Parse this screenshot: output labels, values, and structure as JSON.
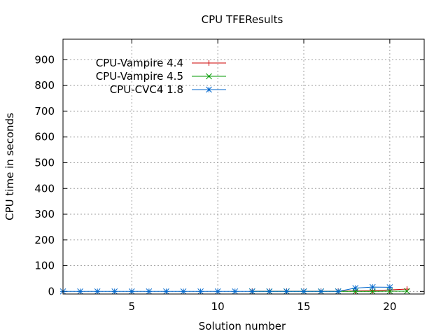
{
  "chart_data": {
    "type": "line",
    "title": "CPU TFEResults",
    "xlabel": "Solution number",
    "ylabel": "CPU time in seconds",
    "xlim": [
      1,
      22
    ],
    "ylim": [
      -10,
      980
    ],
    "xticks": [
      5,
      10,
      15,
      20
    ],
    "yticks": [
      0,
      100,
      200,
      300,
      400,
      500,
      600,
      700,
      800,
      900
    ],
    "grid": true,
    "legend": "top-left",
    "series": [
      {
        "name": "CPU-Vampire 4.4",
        "color": "#cc0000",
        "marker": "plus",
        "x": [
          12,
          13,
          14,
          15,
          16,
          17,
          18,
          19,
          20,
          21
        ],
        "y": [
          1,
          1,
          1,
          1,
          1,
          1,
          2,
          3,
          6,
          9
        ]
      },
      {
        "name": "CPU-Vampire 4.5",
        "color": "#009900",
        "marker": "cross",
        "x": [
          12,
          13,
          14,
          15,
          16,
          17,
          18,
          19,
          20,
          21
        ],
        "y": [
          0,
          0,
          0,
          0,
          0,
          0,
          0,
          0,
          1,
          1
        ]
      },
      {
        "name": "CPU-CVC4 1.8",
        "color": "#0066cc",
        "marker": "star",
        "x": [
          1,
          2,
          3,
          4,
          5,
          6,
          7,
          8,
          9,
          10,
          11,
          12,
          13,
          14,
          15,
          16,
          17,
          18,
          19,
          20
        ],
        "y": [
          0,
          0,
          0,
          0,
          0,
          0,
          0,
          0,
          0,
          0,
          0,
          0,
          0,
          0,
          0,
          0,
          0,
          13,
          17,
          16
        ]
      }
    ]
  }
}
